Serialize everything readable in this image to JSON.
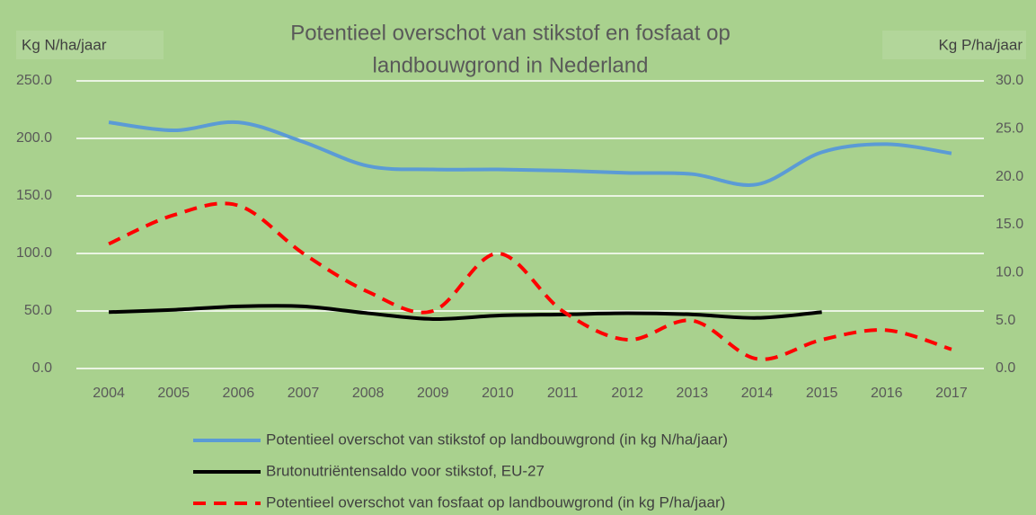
{
  "chart_data": {
    "type": "line",
    "title": [
      "Potentieel overschot van stikstof en fosfaat op",
      "landbouwgrond in Nederland"
    ],
    "y_label": "Kg N/ha/jaar",
    "y2_label": "Kg P/ha/jaar",
    "categories": [
      "2004",
      "2005",
      "2006",
      "2007",
      "2008",
      "2009",
      "2010",
      "2011",
      "2012",
      "2013",
      "2014",
      "2015",
      "2016",
      "2017"
    ],
    "series": [
      {
        "name": "Potentieel overschot van stikstof op landbouwgrond (in kg N/ha/jaar)",
        "color": "#5b9bd5",
        "dashed": false,
        "values": [
          214,
          207,
          214,
          197,
          176,
          173,
          173,
          172,
          170,
          169,
          160,
          188,
          195,
          187
        ]
      },
      {
        "name": "Brutonutriëntensaldo voor stikstof, EU-27",
        "color": "#000000",
        "dashed": false,
        "values": [
          49,
          51,
          54,
          54,
          48,
          43,
          46,
          47,
          48,
          47,
          44,
          49,
          null,
          null
        ]
      },
      {
        "name": "Potentieel overschot van fosfaat op landbouwgrond (in kg P/ha/jaar)",
        "color": "#ff0000",
        "dashed": true,
        "axis": "y2",
        "values": [
          13,
          16,
          17,
          12,
          8,
          6,
          12,
          6,
          3,
          5,
          1,
          3,
          4,
          2
        ]
      }
    ],
    "ylim": [
      0,
      250
    ],
    "yticks": [
      {
        "value": 0,
        "label": "0.0"
      },
      {
        "value": 50,
        "label": "50.0"
      },
      {
        "value": 100,
        "label": "100.0"
      },
      {
        "value": 150,
        "label": "150.0"
      },
      {
        "value": 200,
        "label": "200.0"
      },
      {
        "value": 250,
        "label": "250.0"
      }
    ],
    "y2lim": [
      0,
      30
    ],
    "y2ticks": [
      {
        "value": 0,
        "label": "0.0"
      },
      {
        "value": 5,
        "label": "5.0"
      },
      {
        "value": 10,
        "label": "10.0"
      },
      {
        "value": 15,
        "label": "15.0"
      },
      {
        "value": 20,
        "label": "20.0"
      },
      {
        "value": 25,
        "label": "25.0"
      },
      {
        "value": 30,
        "label": "30.0"
      }
    ],
    "grid": true
  }
}
